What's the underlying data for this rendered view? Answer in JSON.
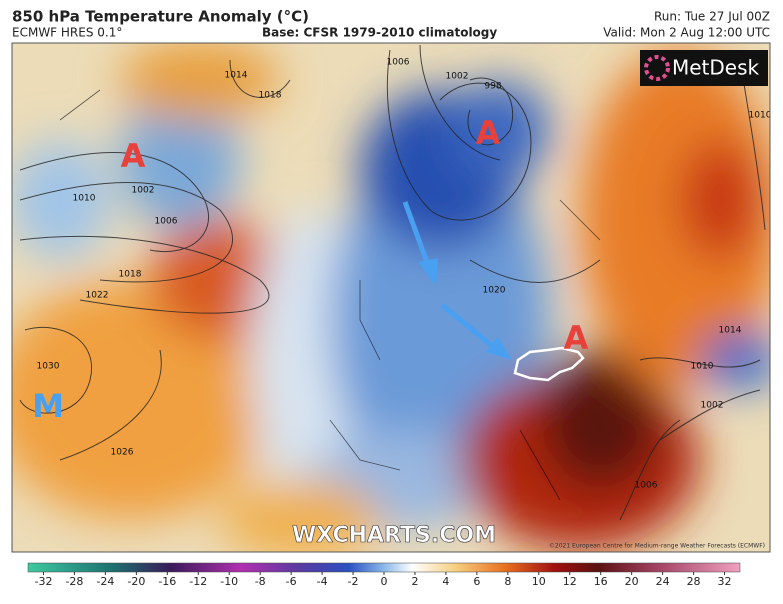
{
  "header": {
    "title": "850 hPa Temperature Anomaly (°C)",
    "model": "ECMWF HRES 0.1°",
    "base": "Base: CFSR 1979-2010 climatology",
    "run": "Run: Tue 27 Jul 00Z",
    "valid": "Valid: Mon 2 Aug 12:00 UTC"
  },
  "logo": "MetDesk",
  "watermark": "WXCHARTS.COM",
  "copyright": "©2021 European Centre for Medium-range Weather Forecasts (ECMWF)",
  "pressure_centres": [
    "A",
    "A",
    "A",
    "M"
  ],
  "isobar_labels": [
    "1002",
    "1010",
    "1006",
    "1018",
    "1022",
    "1030",
    "1026",
    "998",
    "1002",
    "1006",
    "1014",
    "1018",
    "1020",
    "1010",
    "1014",
    "1010",
    "1006",
    "1002"
  ],
  "colorbar": {
    "ticks": [
      -32,
      -28,
      -24,
      -20,
      -16,
      -12,
      -10,
      -8,
      -6,
      -4,
      -2,
      0,
      2,
      4,
      6,
      8,
      10,
      12,
      16,
      20,
      24,
      28,
      32
    ]
  }
}
